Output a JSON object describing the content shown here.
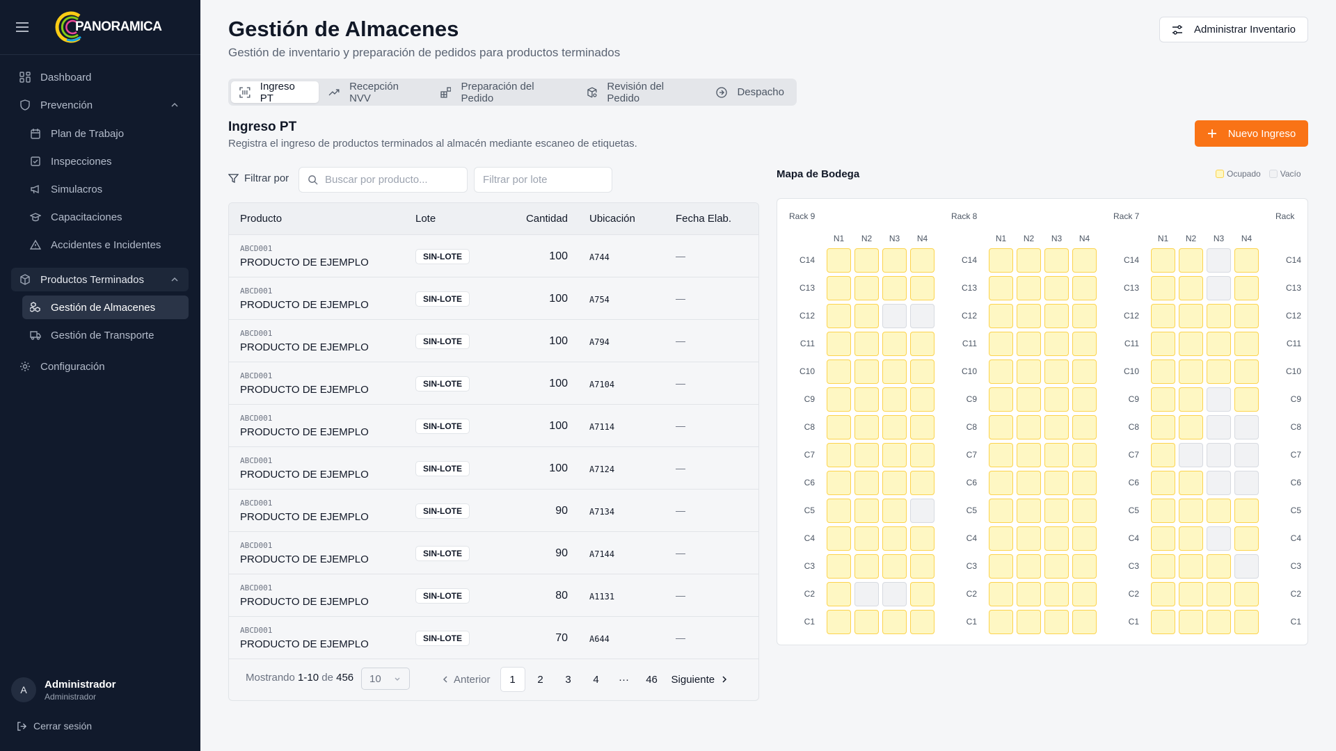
{
  "sidebar": {
    "logo": "PANORAMICA",
    "items": [
      {
        "label": "Dashboard"
      },
      {
        "label": "Prevención"
      },
      {
        "label": "Plan de Trabajo"
      },
      {
        "label": "Inspecciones"
      },
      {
        "label": "Simulacros"
      },
      {
        "label": "Capacitaciones"
      },
      {
        "label": "Accidentes e Incidentes"
      },
      {
        "label": "Productos Terminados"
      },
      {
        "label": "Gestión de Almacenes"
      },
      {
        "label": "Gestión de Transporte"
      },
      {
        "label": "Configuración"
      }
    ],
    "user": {
      "initial": "A",
      "name": "Administrador",
      "role": "Administrador"
    },
    "logout": "Cerrar sesión"
  },
  "header": {
    "title": "Gestión de Almacenes",
    "subtitle": "Gestión de inventario y preparación de pedidos para productos terminados",
    "admin_button": "Administrar Inventario"
  },
  "tabs": [
    {
      "label": "Ingreso PT",
      "active": true
    },
    {
      "label": "Recepción NVV"
    },
    {
      "label": "Preparación del Pedido"
    },
    {
      "label": "Revisión del Pedido"
    },
    {
      "label": "Despacho"
    }
  ],
  "section": {
    "title": "Ingreso PT",
    "description": "Registra el ingreso de productos terminados al almacén mediante escaneo de etiquetas.",
    "new_button": "Nuevo Ingreso",
    "accent": "#f97316"
  },
  "filters": {
    "label": "Filtrar por",
    "search_placeholder": "Buscar por producto...",
    "lot_placeholder": "Filtrar por lote"
  },
  "table": {
    "columns": [
      "Producto",
      "Lote",
      "Cantidad",
      "Ubicación",
      "Fecha Elab."
    ],
    "rows": [
      {
        "code": "ABCD001",
        "name": "PRODUCTO DE EJEMPLO",
        "lot": "SIN-LOTE",
        "qty": "100",
        "loc": "A744",
        "date": "—"
      },
      {
        "code": "ABCD001",
        "name": "PRODUCTO DE EJEMPLO",
        "lot": "SIN-LOTE",
        "qty": "100",
        "loc": "A754",
        "date": "—"
      },
      {
        "code": "ABCD001",
        "name": "PRODUCTO DE EJEMPLO",
        "lot": "SIN-LOTE",
        "qty": "100",
        "loc": "A794",
        "date": "—"
      },
      {
        "code": "ABCD001",
        "name": "PRODUCTO DE EJEMPLO",
        "lot": "SIN-LOTE",
        "qty": "100",
        "loc": "A7104",
        "date": "—"
      },
      {
        "code": "ABCD001",
        "name": "PRODUCTO DE EJEMPLO",
        "lot": "SIN-LOTE",
        "qty": "100",
        "loc": "A7114",
        "date": "—"
      },
      {
        "code": "ABCD001",
        "name": "PRODUCTO DE EJEMPLO",
        "lot": "SIN-LOTE",
        "qty": "100",
        "loc": "A7124",
        "date": "—"
      },
      {
        "code": "ABCD001",
        "name": "PRODUCTO DE EJEMPLO",
        "lot": "SIN-LOTE",
        "qty": "90",
        "loc": "A7134",
        "date": "—"
      },
      {
        "code": "ABCD001",
        "name": "PRODUCTO DE EJEMPLO",
        "lot": "SIN-LOTE",
        "qty": "90",
        "loc": "A7144",
        "date": "—"
      },
      {
        "code": "ABCD001",
        "name": "PRODUCTO DE EJEMPLO",
        "lot": "SIN-LOTE",
        "qty": "80",
        "loc": "A1131",
        "date": "—"
      },
      {
        "code": "ABCD001",
        "name": "PRODUCTO DE EJEMPLO",
        "lot": "SIN-LOTE",
        "qty": "70",
        "loc": "A644",
        "date": "—"
      }
    ],
    "footer": {
      "showing_prefix": "Mostrando",
      "range": "1-10",
      "of": "de",
      "total": "456",
      "page_size": "10",
      "prev": "Anterior",
      "next": "Siguiente",
      "pages": [
        "1",
        "2",
        "3",
        "4",
        "···",
        "46"
      ],
      "current_page": "1"
    }
  },
  "map": {
    "title": "Mapa de Bodega",
    "legend": {
      "occupied": "Ocupado",
      "empty": "Vacío",
      "occupied_color": "#fef7c3",
      "empty_color": "#f1f2f4"
    },
    "levels": [
      "N1",
      "N2",
      "N3",
      "N4"
    ],
    "rows": [
      "C14",
      "C13",
      "C12",
      "C11",
      "C10",
      "C9",
      "C8",
      "C7",
      "C6",
      "C5",
      "C4",
      "C3",
      "C2",
      "C1"
    ],
    "racks": [
      {
        "name": "Rack 9",
        "occupancy": [
          "1111",
          "1111",
          "1100",
          "1111",
          "1111",
          "1111",
          "1111",
          "1111",
          "1111",
          "1110",
          "1111",
          "1111",
          "1001",
          "1111"
        ]
      },
      {
        "name": "Rack 8",
        "occupancy": [
          "1111",
          "1111",
          "1111",
          "1111",
          "1111",
          "1111",
          "1111",
          "1111",
          "1111",
          "1111",
          "1111",
          "1111",
          "1111",
          "1111"
        ]
      },
      {
        "name": "Rack 7",
        "occupancy": [
          "1101",
          "1101",
          "1111",
          "1111",
          "1111",
          "1101",
          "1100",
          "1000",
          "1100",
          "1111",
          "1101",
          "1110",
          "1111",
          "1111"
        ]
      },
      {
        "name": "Rack",
        "occupancy": []
      }
    ]
  }
}
